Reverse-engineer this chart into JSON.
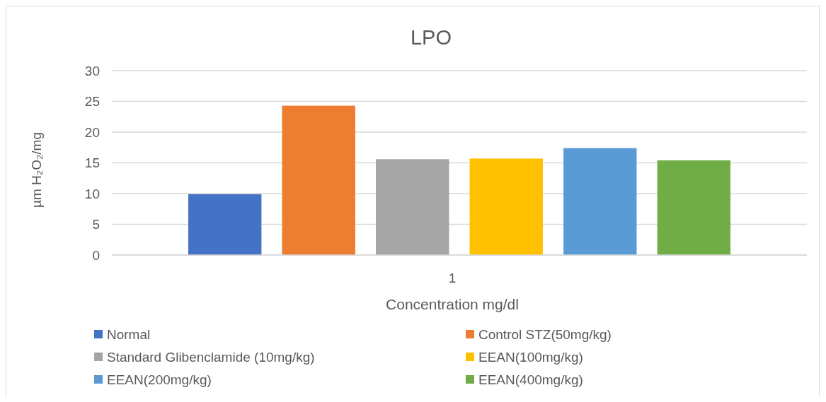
{
  "chart_data": {
    "type": "bar",
    "title": "LPO",
    "xlabel": "Concentration mg/dl",
    "ylabel": "µm H₂O₂/mg",
    "categories": [
      "1"
    ],
    "series": [
      {
        "name": "Normal",
        "color": "#4472c4",
        "values": [
          9.9
        ]
      },
      {
        "name": "Control STZ(50mg/kg)",
        "color": "#ed7d31",
        "values": [
          24.3
        ]
      },
      {
        "name": "Standard Glibenclamide (10mg/kg)",
        "color": "#a5a5a5",
        "values": [
          15.6
        ]
      },
      {
        "name": "EEAN(100mg/kg)",
        "color": "#ffc000",
        "values": [
          15.7
        ]
      },
      {
        "name": "EEAN(200mg/kg)",
        "color": "#5b9bd5",
        "values": [
          17.4
        ]
      },
      {
        "name": "EEAN(400mg/kg)",
        "color": "#70ad47",
        "values": [
          15.4
        ]
      }
    ],
    "ylim": [
      0,
      30
    ],
    "yticks": [
      0,
      5,
      10,
      15,
      20,
      25,
      30
    ],
    "grid": "y",
    "legend": "bottom"
  }
}
